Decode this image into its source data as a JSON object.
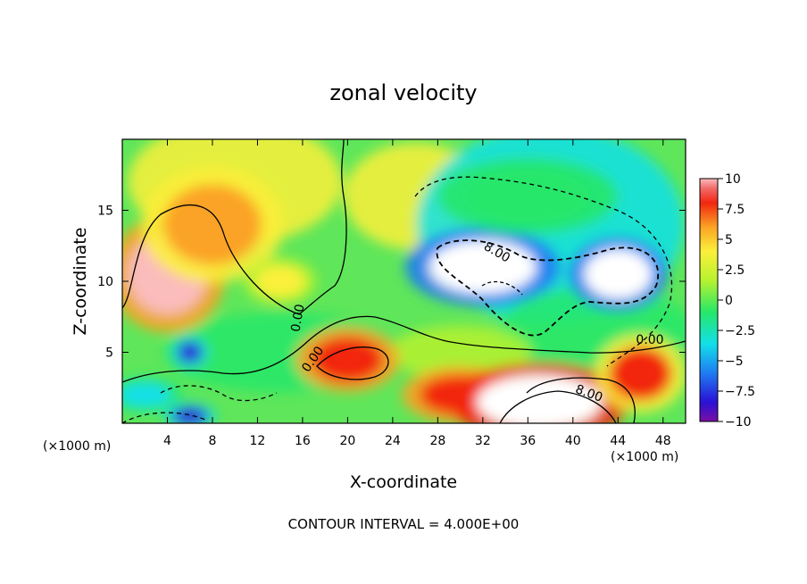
{
  "chart_data": {
    "type": "heatmap",
    "title": "zonal velocity",
    "xlabel": "X-coordinate",
    "ylabel": "Z-coordinate",
    "x_unit": "(×1000 m)",
    "y_unit": "(×1000 m)",
    "xlim": [
      0,
      50
    ],
    "ylim": [
      0,
      20
    ],
    "x_ticks": [
      "4",
      "8",
      "12",
      "16",
      "20",
      "24",
      "28",
      "32",
      "36",
      "40",
      "44",
      "48"
    ],
    "y_ticks": [
      "5",
      "10",
      "15"
    ],
    "colorbar": {
      "vmin": -10,
      "vmax": 10,
      "ticks": [
        "10",
        "7.5",
        "5",
        "2.5",
        "0",
        "−2.5",
        "−5",
        "−7.5",
        "−10"
      ]
    },
    "contour_labels": [
      "0.00",
      "0.00",
      "8.00",
      "0.00",
      "8.00"
    ],
    "footer": "CONTOUR INTERVAL = 4.000E+00",
    "features": [
      {
        "x": 4,
        "z": 10.5,
        "value": 10
      },
      {
        "x": 8,
        "z": 14,
        "value": 5.5
      },
      {
        "x": 20,
        "z": 4.5,
        "value": 8
      },
      {
        "x": 30,
        "z": 2.0,
        "value": 8
      },
      {
        "x": 37,
        "z": 1.5,
        "value": 12
      },
      {
        "x": 46,
        "z": 3.5,
        "value": 7
      },
      {
        "x": 32,
        "z": 11,
        "value": -12
      },
      {
        "x": 44,
        "z": 10.5,
        "value": -12
      },
      {
        "x": 36,
        "z": 16,
        "value": -3
      },
      {
        "x": 6,
        "z": 5,
        "value": -9
      },
      {
        "x": 6,
        "z": 0.5,
        "value": -9
      },
      {
        "x": 2,
        "z": 2,
        "value": -5
      },
      {
        "x": 14,
        "z": 10,
        "value": 2.5
      }
    ]
  }
}
